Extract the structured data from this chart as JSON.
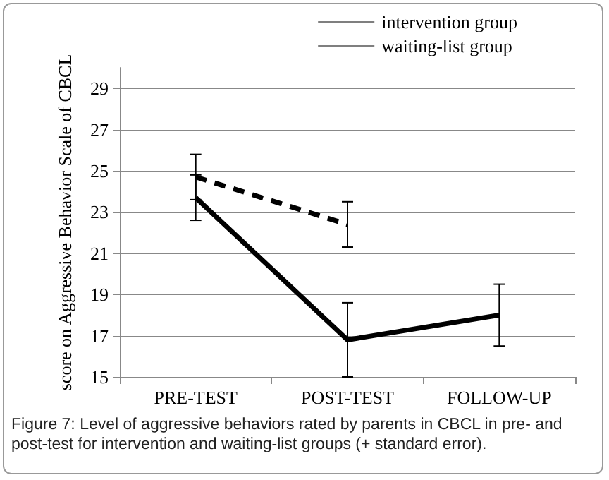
{
  "chart_data": {
    "type": "line",
    "ylabel": "score on Aggressive Behavior Scale of CBCL",
    "categories": [
      "PRE-TEST",
      "POST-TEST",
      "FOLLOW-UP"
    ],
    "series": [
      {
        "name": "intervention group",
        "color": "#000000",
        "line_style": "solid",
        "values": [
          23.7,
          16.8,
          18.0
        ],
        "errors": [
          1.1,
          1.8,
          1.5
        ]
      },
      {
        "name": "waiting-list group",
        "color": "#000000",
        "line_style": "dashed",
        "values": [
          24.7,
          22.4,
          null
        ],
        "errors": [
          1.1,
          1.1,
          null
        ]
      }
    ],
    "ylim": [
      15,
      30
    ],
    "yticks": [
      15,
      17,
      19,
      21,
      23,
      25,
      27,
      29
    ],
    "grid": "y",
    "legend": "top right",
    "marker": "none",
    "annotations": [
      "Figure 7: Level of aggressive behaviors rated by parents in CBCL in pre- and post-test for intervention and waiting-list groups (+ standard error)."
    ]
  }
}
